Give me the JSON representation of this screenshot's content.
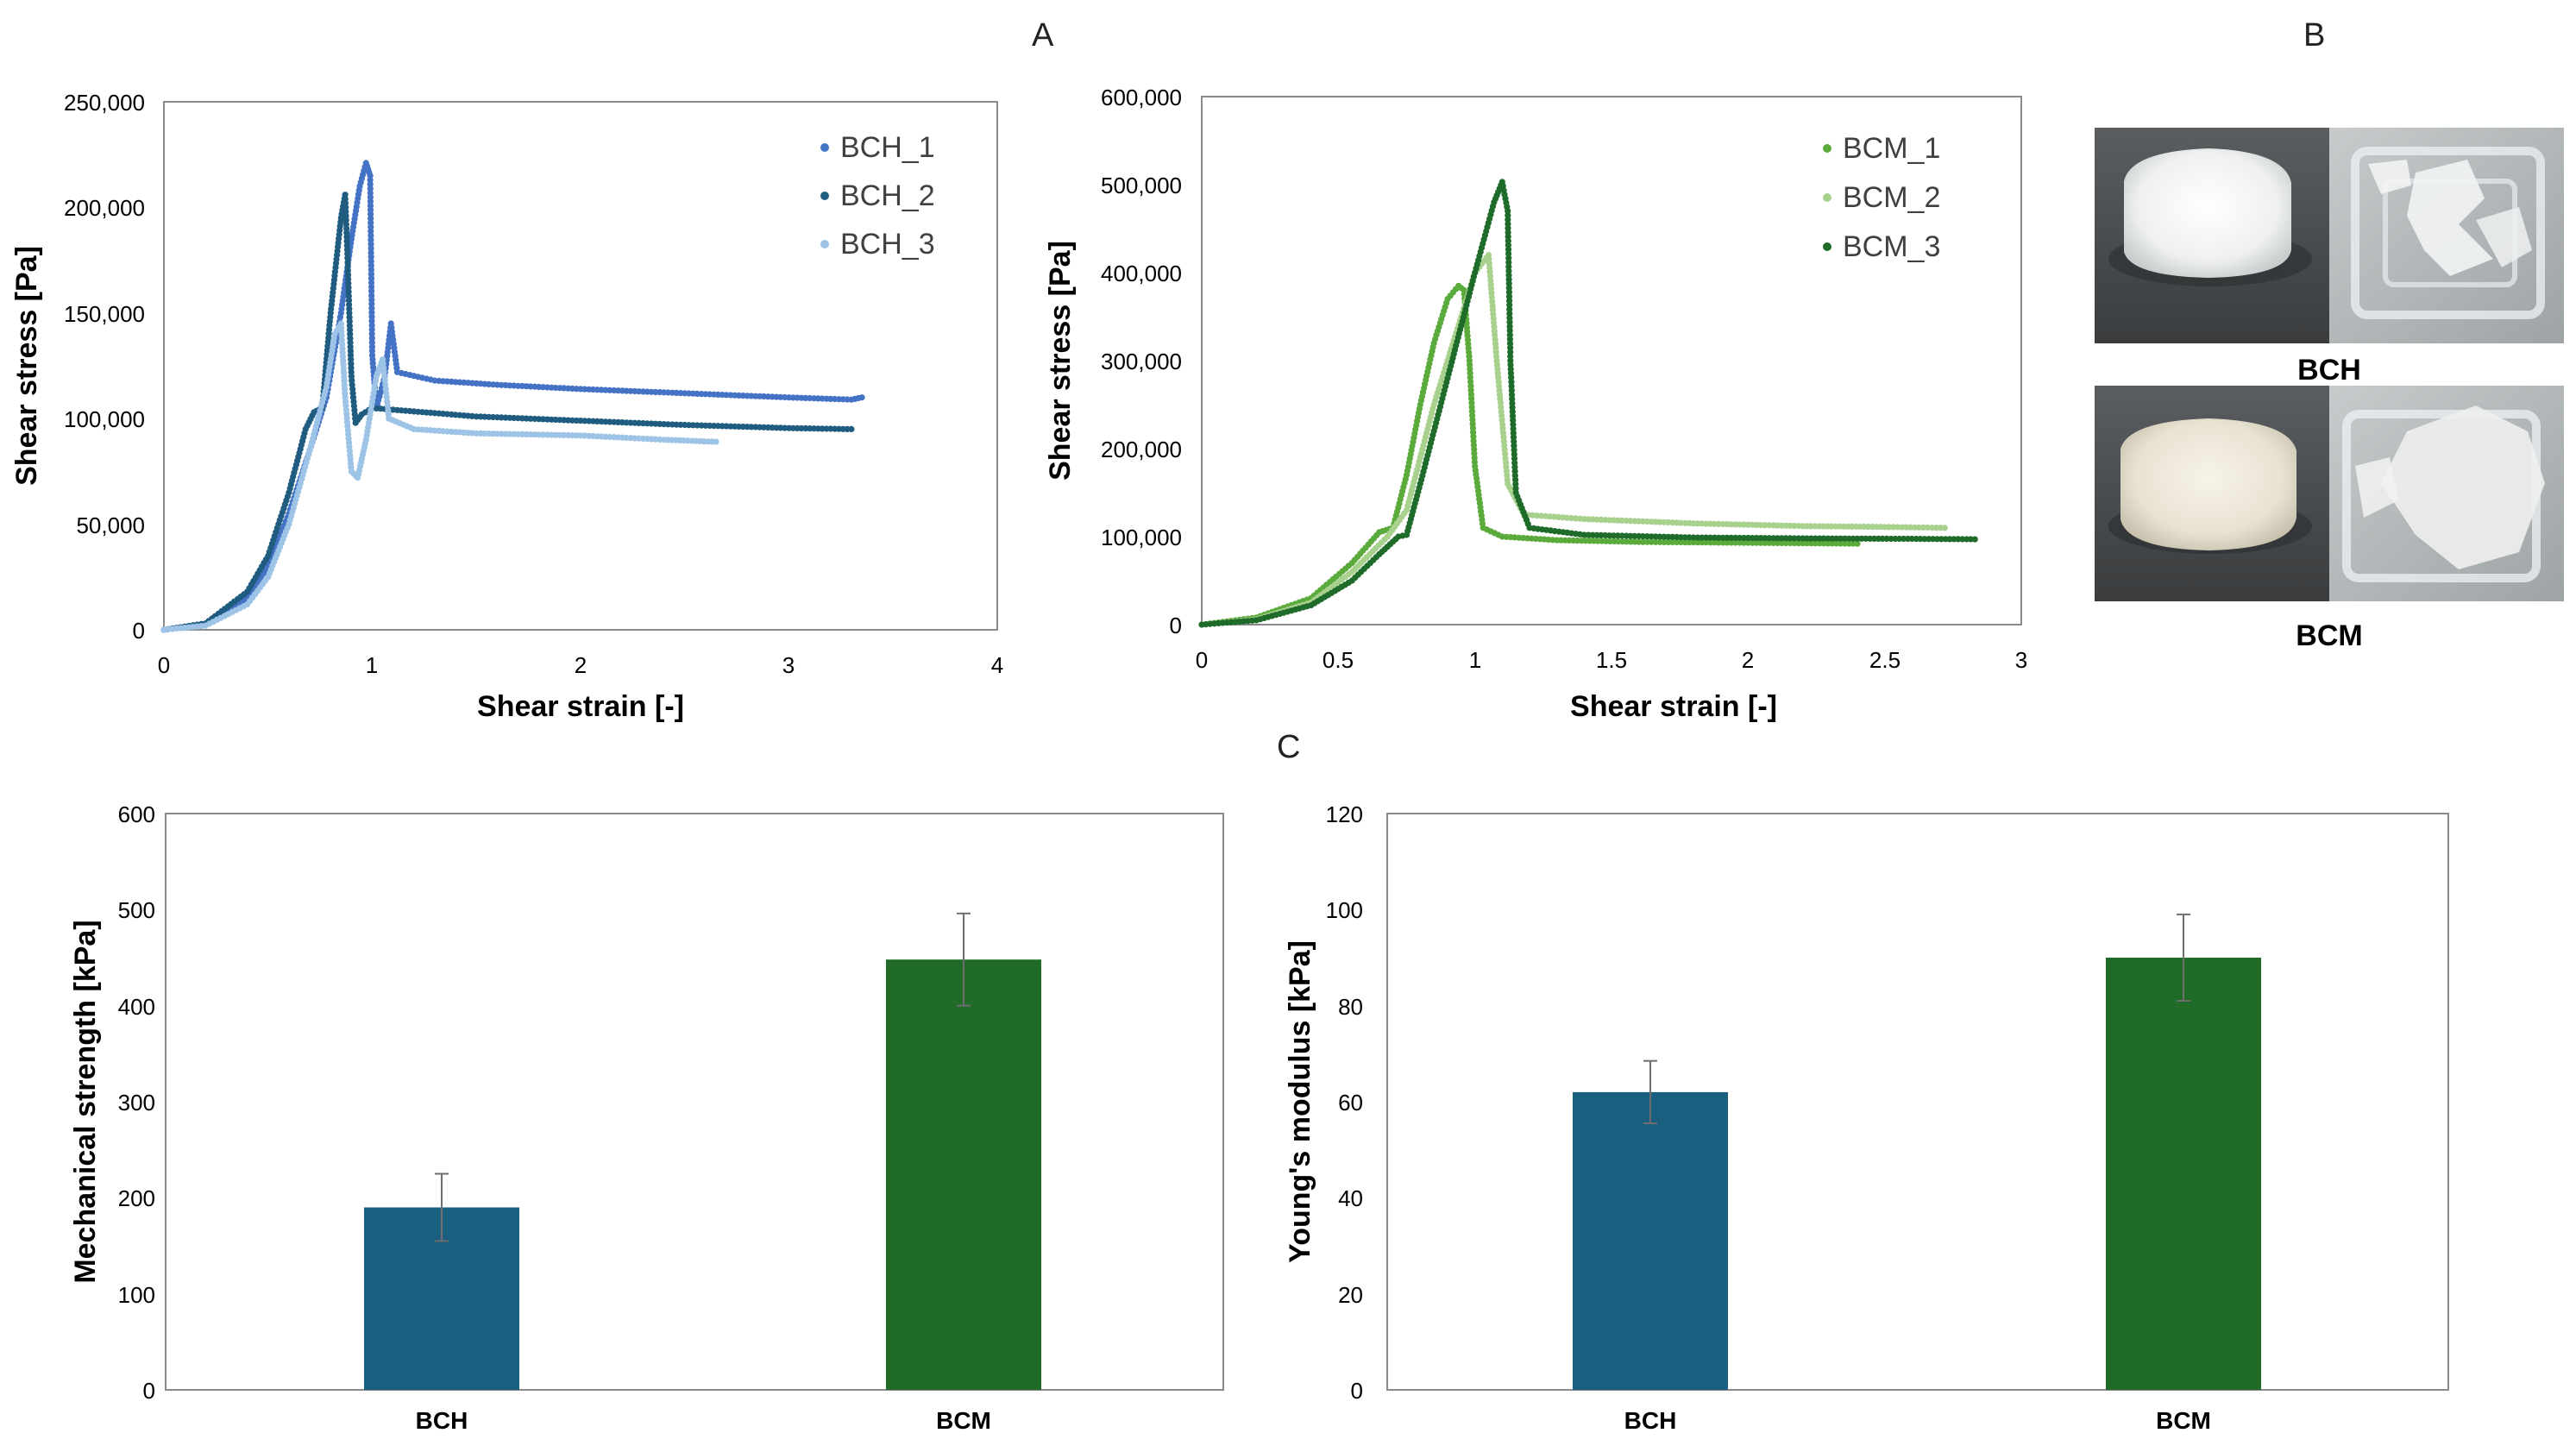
{
  "panels": {
    "a": "A",
    "b": "B",
    "c": "C"
  },
  "photos": {
    "top_label": "BCH",
    "bottom_label": "BCM"
  },
  "colors": {
    "bch_1": "#4472C4",
    "bch_2": "#1F5C80",
    "bch_3": "#9DC3E6",
    "bcm_1": "#5BAA3C",
    "bcm_2": "#A9D18E",
    "bcm_3": "#1E6B2A",
    "bar_bch": "#1A5E80",
    "bar_bcm": "#1F6B27"
  },
  "chart_data": [
    {
      "id": "bch_curve",
      "type": "scatter",
      "xlabel": "Shear strain [-]",
      "ylabel": "Shear stress [Pa]",
      "xlim": [
        0,
        4
      ],
      "ylim": [
        0,
        250000
      ],
      "xticks": [
        "0",
        "1",
        "2",
        "3",
        "4"
      ],
      "yticks": [
        "0",
        "50,000",
        "100,000",
        "150,000",
        "200,000",
        "250,000"
      ],
      "legend_position": "top-right",
      "series": [
        {
          "name": "BCH_1",
          "color_key": "bch_1",
          "points": [
            [
              0,
              0
            ],
            [
              0.2,
              3000
            ],
            [
              0.4,
              15000
            ],
            [
              0.5,
              30000
            ],
            [
              0.6,
              55000
            ],
            [
              0.7,
              85000
            ],
            [
              0.78,
              110000
            ],
            [
              0.85,
              150000
            ],
            [
              0.9,
              185000
            ],
            [
              0.94,
              210000
            ],
            [
              0.97,
              221000
            ],
            [
              0.99,
              215000
            ],
            [
              1.0,
              130000
            ],
            [
              1.02,
              105000
            ],
            [
              1.06,
              120000
            ],
            [
              1.09,
              145000
            ],
            [
              1.12,
              122000
            ],
            [
              1.3,
              118000
            ],
            [
              1.6,
              116000
            ],
            [
              2.0,
              114000
            ],
            [
              2.5,
              112000
            ],
            [
              3.0,
              110000
            ],
            [
              3.3,
              109000
            ],
            [
              3.35,
              110000
            ]
          ]
        },
        {
          "name": "BCH_2",
          "color_key": "bch_2",
          "points": [
            [
              0,
              0
            ],
            [
              0.2,
              3000
            ],
            [
              0.4,
              18000
            ],
            [
              0.5,
              35000
            ],
            [
              0.6,
              65000
            ],
            [
              0.68,
              95000
            ],
            [
              0.72,
              103000
            ],
            [
              0.76,
              105000
            ],
            [
              0.8,
              150000
            ],
            [
              0.85,
              195000
            ],
            [
              0.87,
              206000
            ],
            [
              0.88,
              180000
            ],
            [
              0.9,
              120000
            ],
            [
              0.92,
              98000
            ],
            [
              0.95,
              102000
            ],
            [
              1.0,
              105000
            ],
            [
              1.5,
              101000
            ],
            [
              2.0,
              99000
            ],
            [
              2.5,
              97000
            ],
            [
              3.0,
              95500
            ],
            [
              3.3,
              95000
            ]
          ]
        },
        {
          "name": "BCH_3",
          "color_key": "bch_3",
          "points": [
            [
              0,
              0
            ],
            [
              0.2,
              2000
            ],
            [
              0.4,
              12000
            ],
            [
              0.5,
              25000
            ],
            [
              0.6,
              50000
            ],
            [
              0.7,
              85000
            ],
            [
              0.78,
              115000
            ],
            [
              0.82,
              140000
            ],
            [
              0.85,
              145000
            ],
            [
              0.87,
              110000
            ],
            [
              0.9,
              75000
            ],
            [
              0.93,
              72000
            ],
            [
              0.97,
              90000
            ],
            [
              1.02,
              120000
            ],
            [
              1.05,
              128000
            ],
            [
              1.08,
              100000
            ],
            [
              1.2,
              95000
            ],
            [
              1.5,
              93000
            ],
            [
              2.0,
              92000
            ],
            [
              2.4,
              90000
            ],
            [
              2.65,
              89000
            ]
          ]
        }
      ]
    },
    {
      "id": "bcm_curve",
      "type": "scatter",
      "xlabel": "Shear strain [-]",
      "ylabel": "Shear stress [Pa]",
      "xlim": [
        0,
        3
      ],
      "ylim": [
        0,
        600000
      ],
      "xticks": [
        "0",
        "0.5",
        "1",
        "1.5",
        "2",
        "2.5",
        "3"
      ],
      "yticks": [
        "0",
        "100,000",
        "200,000",
        "300,000",
        "400,000",
        "500,000",
        "600,000"
      ],
      "legend_position": "top-right",
      "series": [
        {
          "name": "BCM_1",
          "color_key": "bcm_1",
          "points": [
            [
              0,
              0
            ],
            [
              0.2,
              8000
            ],
            [
              0.4,
              30000
            ],
            [
              0.55,
              70000
            ],
            [
              0.65,
              105000
            ],
            [
              0.7,
              110000
            ],
            [
              0.75,
              170000
            ],
            [
              0.8,
              250000
            ],
            [
              0.85,
              320000
            ],
            [
              0.9,
              370000
            ],
            [
              0.94,
              385000
            ],
            [
              0.96,
              380000
            ],
            [
              0.98,
              300000
            ],
            [
              1.0,
              180000
            ],
            [
              1.03,
              110000
            ],
            [
              1.1,
              100000
            ],
            [
              1.3,
              96000
            ],
            [
              1.6,
              94000
            ],
            [
              2.0,
              93000
            ],
            [
              2.4,
              92000
            ]
          ]
        },
        {
          "name": "BCM_2",
          "color_key": "bcm_2",
          "points": [
            [
              0,
              0
            ],
            [
              0.2,
              6000
            ],
            [
              0.4,
              25000
            ],
            [
              0.55,
              60000
            ],
            [
              0.68,
              100000
            ],
            [
              0.75,
              130000
            ],
            [
              0.85,
              250000
            ],
            [
              0.95,
              350000
            ],
            [
              1.0,
              400000
            ],
            [
              1.05,
              420000
            ],
            [
              1.08,
              300000
            ],
            [
              1.12,
              160000
            ],
            [
              1.18,
              125000
            ],
            [
              1.4,
              120000
            ],
            [
              1.8,
              115000
            ],
            [
              2.2,
              112000
            ],
            [
              2.5,
              111000
            ],
            [
              2.72,
              110000
            ]
          ]
        },
        {
          "name": "BCM_3",
          "color_key": "bcm_3",
          "points": [
            [
              0,
              0
            ],
            [
              0.2,
              5000
            ],
            [
              0.4,
              22000
            ],
            [
              0.55,
              50000
            ],
            [
              0.65,
              80000
            ],
            [
              0.72,
              100000
            ],
            [
              0.75,
              102000
            ],
            [
              0.8,
              160000
            ],
            [
              0.9,
              280000
            ],
            [
              1.0,
              400000
            ],
            [
              1.07,
              480000
            ],
            [
              1.1,
              503000
            ],
            [
              1.12,
              470000
            ],
            [
              1.13,
              300000
            ],
            [
              1.15,
              150000
            ],
            [
              1.2,
              110000
            ],
            [
              1.4,
              102000
            ],
            [
              1.8,
              99000
            ],
            [
              2.2,
              98000
            ],
            [
              2.6,
              97500
            ],
            [
              2.83,
              97000
            ]
          ]
        }
      ]
    },
    {
      "id": "strength_bar",
      "type": "bar",
      "ylabel": "Mechanical strength [kPa]",
      "categories": [
        "BCH",
        "BCM"
      ],
      "values": [
        190,
        448
      ],
      "errors": [
        35,
        48
      ],
      "ylim": [
        0,
        600
      ],
      "yticks": [
        "0",
        "100",
        "200",
        "300",
        "400",
        "500",
        "600"
      ]
    },
    {
      "id": "modulus_bar",
      "type": "bar",
      "ylabel": "Young's modulus [kPa]",
      "categories": [
        "BCH",
        "BCM"
      ],
      "values": [
        62,
        90
      ],
      "errors": [
        6.5,
        9
      ],
      "ylim": [
        0,
        120
      ],
      "yticks": [
        "0",
        "20",
        "40",
        "60",
        "80",
        "100",
        "120"
      ]
    }
  ]
}
